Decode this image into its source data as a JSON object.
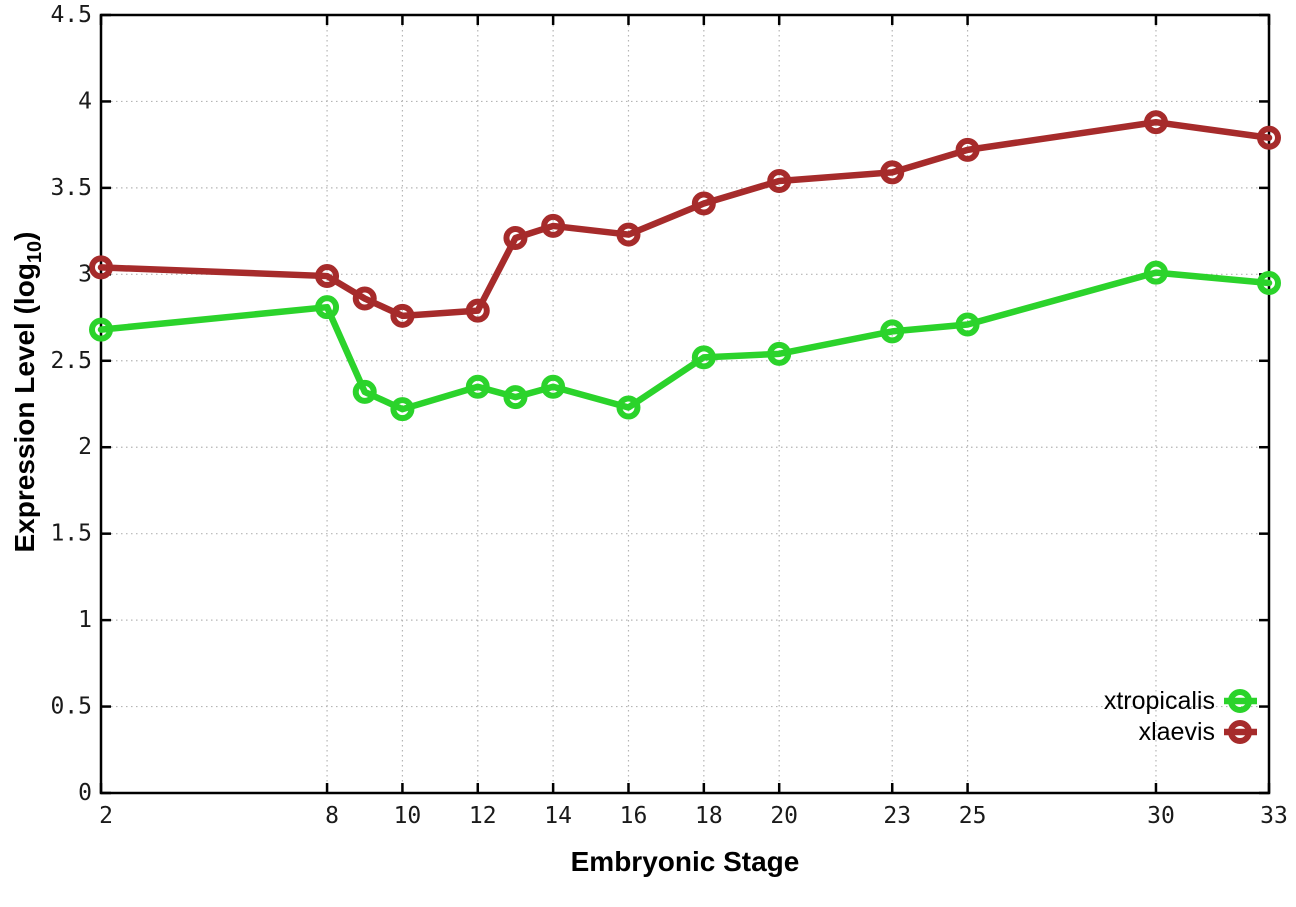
{
  "chart_data": {
    "type": "line",
    "title": "",
    "xlabel": "Embryonic Stage",
    "ylabel": {
      "pre": "Expression Level (log",
      "sub": "10",
      "post": ")"
    },
    "x": [
      2,
      8,
      9,
      10,
      12,
      13,
      14,
      16,
      18,
      20,
      23,
      25,
      30,
      33
    ],
    "series": [
      {
        "name": "xtropicalis",
        "color": "#2bd32b",
        "values": [
          2.68,
          2.81,
          2.32,
          2.22,
          2.35,
          2.29,
          2.35,
          2.23,
          2.52,
          2.54,
          2.67,
          2.71,
          3.01,
          2.95
        ]
      },
      {
        "name": "xlaevis",
        "color": "#a62b2b",
        "values": [
          3.04,
          2.99,
          2.86,
          2.76,
          2.79,
          3.21,
          3.28,
          3.23,
          3.41,
          3.54,
          3.59,
          3.72,
          3.88,
          3.79
        ]
      }
    ],
    "xlim": [
      2,
      33
    ],
    "ylim": [
      0,
      4.5
    ],
    "x_ticks": [
      2,
      8,
      10,
      12,
      14,
      16,
      18,
      20,
      23,
      25,
      30,
      33
    ],
    "x_tick_labels": [
      "2",
      "8",
      "10",
      "12",
      "14",
      "16",
      "18",
      "20",
      "23",
      "25",
      "30",
      "33"
    ],
    "y_ticks": [
      0,
      0.5,
      1,
      1.5,
      2,
      2.5,
      3,
      3.5,
      4,
      4.5
    ],
    "y_tick_labels": [
      "0",
      "0.5",
      "1",
      "1.5",
      "2",
      "2.5",
      "3",
      "3.5",
      "4",
      "4.5"
    ],
    "grid": true,
    "legend_position": "bottom-right",
    "style_colors": {
      "background": "#ffffff",
      "border": "#000000",
      "grid": "#b5b5b5",
      "text": "#1a1a1a"
    }
  }
}
